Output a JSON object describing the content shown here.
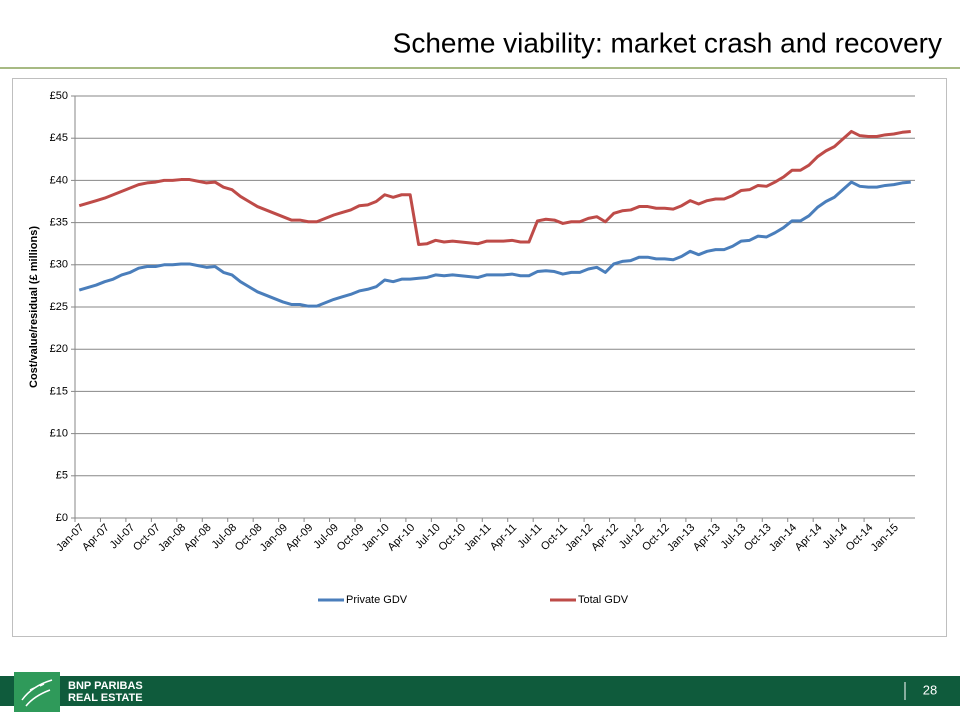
{
  "slide": {
    "title": "Scheme viability: market crash and recovery",
    "logo": [
      "BNP PARIBAS",
      "REAL ESTATE"
    ],
    "page_number": "28"
  },
  "chart_data": {
    "type": "line",
    "y_label": "Cost/value/residual (£ millions)",
    "legend": "bottom",
    "grid": true,
    "categories": [
      "Jan-07",
      null,
      null,
      "Apr-07",
      null,
      null,
      "Jul-07",
      null,
      null,
      "Oct-07",
      null,
      null,
      "Jan-08",
      null,
      null,
      "Apr-08",
      null,
      null,
      "Jul-08",
      null,
      null,
      "Oct-08",
      null,
      null,
      "Jan-09",
      null,
      null,
      "Apr-09",
      null,
      null,
      "Jul-09",
      null,
      null,
      "Oct-09",
      null,
      null,
      "Jan-10",
      null,
      null,
      "Apr-10",
      null,
      null,
      "Jul-10",
      null,
      null,
      "Oct-10",
      null,
      null,
      "Jan-11",
      null,
      null,
      "Apr-11",
      null,
      null,
      "Jul-11",
      null,
      null,
      "Oct-11",
      null,
      null,
      "Jan-12",
      null,
      null,
      "Apr-12",
      null,
      null,
      "Jul-12",
      null,
      null,
      "Oct-12",
      null,
      null,
      "Jan-13",
      null,
      null,
      "Apr-13",
      null,
      null,
      "Jul-13",
      null,
      null,
      "Oct-13",
      null,
      null,
      "Jan-14",
      null,
      null,
      "Apr-14",
      null,
      null,
      "Jul-14",
      null,
      null,
      "Oct-14",
      null,
      null,
      "Jan-15",
      null,
      null
    ],
    "series": [
      {
        "name": "Private GDV",
        "color": "#4a7ebb",
        "values": [
          27.0,
          27.3,
          27.6,
          28.0,
          28.3,
          28.8,
          29.1,
          29.6,
          29.8,
          29.8,
          30.0,
          30.0,
          30.1,
          30.1,
          29.9,
          29.7,
          29.8,
          29.1,
          28.8,
          28.0,
          27.4,
          26.8,
          26.4,
          26.0,
          25.6,
          25.3,
          25.3,
          25.1,
          25.1,
          25.5,
          25.9,
          26.2,
          26.5,
          26.9,
          27.1,
          27.4,
          28.2,
          28.0,
          28.3,
          28.3,
          28.4,
          28.5,
          28.8,
          28.7,
          28.8,
          28.7,
          28.6,
          28.5,
          28.8,
          28.8,
          28.8,
          28.9,
          28.7,
          28.7,
          29.2,
          29.3,
          29.2,
          28.9,
          29.1,
          29.1,
          29.5,
          29.7,
          29.1,
          30.1,
          30.4,
          30.5,
          30.9,
          30.9,
          30.7,
          30.7,
          30.6,
          31.0,
          31.6,
          31.2,
          31.6,
          31.8,
          31.8,
          32.2,
          32.8,
          32.9,
          33.4,
          33.3,
          33.8,
          34.4,
          35.2,
          35.2,
          35.8,
          36.8,
          37.5,
          38.0,
          38.9,
          39.8,
          39.3,
          39.2,
          39.2,
          39.4,
          39.5,
          39.7,
          39.8
        ]
      },
      {
        "name": "Total GDV",
        "color": "#be4b48",
        "values": [
          37.0,
          37.3,
          37.6,
          37.9,
          38.3,
          38.7,
          39.1,
          39.5,
          39.7,
          39.8,
          40.0,
          40.0,
          40.1,
          40.1,
          39.9,
          39.7,
          39.8,
          39.2,
          38.9,
          38.1,
          37.5,
          36.9,
          36.5,
          36.1,
          35.7,
          35.3,
          35.3,
          35.1,
          35.1,
          35.5,
          35.9,
          36.2,
          36.5,
          37.0,
          37.1,
          37.5,
          38.3,
          38.0,
          38.3,
          38.3,
          32.4,
          32.5,
          32.9,
          32.7,
          32.8,
          32.7,
          32.6,
          32.5,
          32.8,
          32.8,
          32.8,
          32.9,
          32.7,
          32.7,
          35.2,
          35.4,
          35.3,
          34.9,
          35.1,
          35.1,
          35.5,
          35.7,
          35.1,
          36.1,
          36.4,
          36.5,
          36.9,
          36.9,
          36.7,
          36.7,
          36.6,
          37.0,
          37.6,
          37.2,
          37.6,
          37.8,
          37.8,
          38.2,
          38.8,
          38.9,
          39.4,
          39.3,
          39.8,
          40.4,
          41.2,
          41.2,
          41.8,
          42.8,
          43.5,
          44.0,
          44.9,
          45.8,
          45.3,
          45.2,
          45.2,
          45.4,
          45.5,
          45.7,
          45.8
        ]
      }
    ],
    "ylim": [
      0,
      50
    ],
    "yticks": [
      {
        "value": 0,
        "label": "£0"
      },
      {
        "value": 5,
        "label": "£5"
      },
      {
        "value": 10,
        "label": "£10"
      },
      {
        "value": 15,
        "label": "£15"
      },
      {
        "value": 20,
        "label": "£20"
      },
      {
        "value": 25,
        "label": "£25"
      },
      {
        "value": 30,
        "label": "£30"
      },
      {
        "value": 35,
        "label": "£35"
      },
      {
        "value": 40,
        "label": "£40"
      },
      {
        "value": 45,
        "label": "£45"
      },
      {
        "value": 50,
        "label": "£50"
      }
    ]
  }
}
